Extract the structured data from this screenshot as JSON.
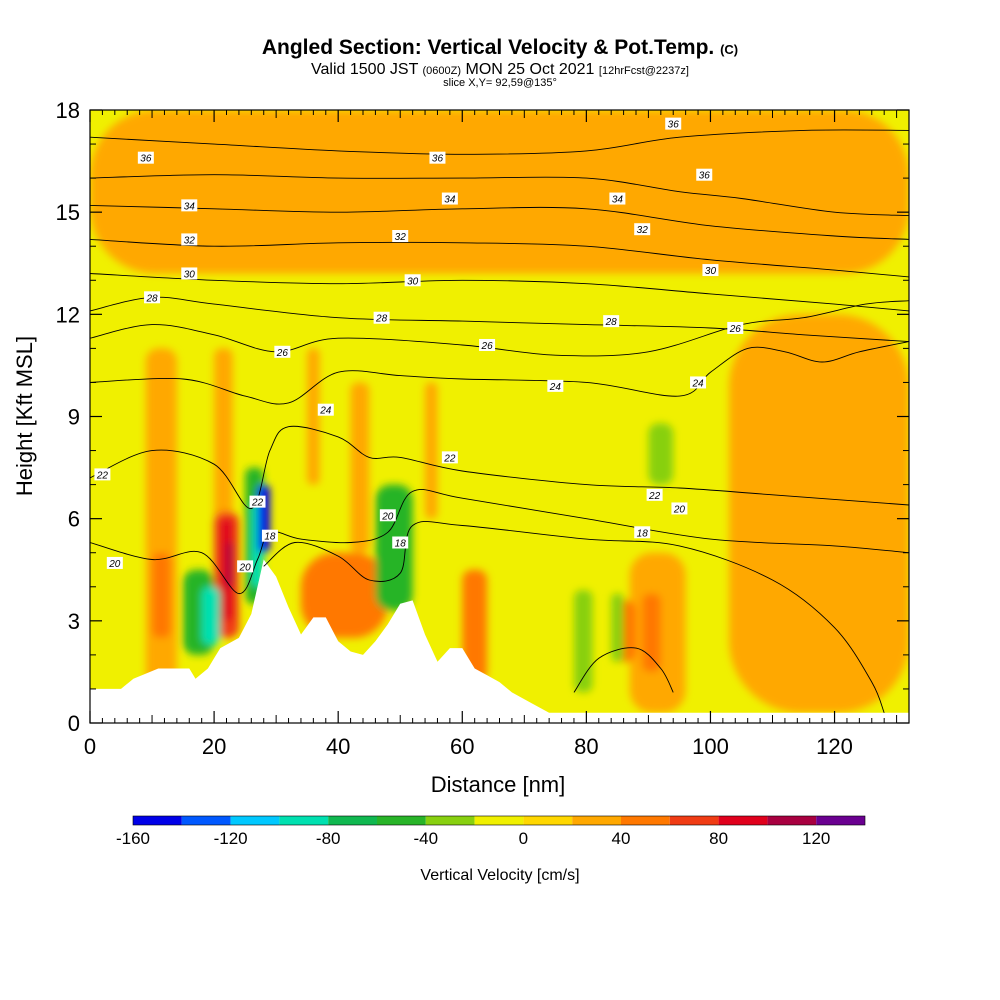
{
  "header": {
    "title": "Angled Section: Vertical Velocity & Pot.Temp.",
    "title_unit": "(C)",
    "valid_prefix": "Valid 1500 JST",
    "valid_utc": "(0600Z)",
    "valid_date": "MON 25 Oct 2021",
    "forecast": "[12hrFcst@2237z]",
    "slice": "slice X,Y= 92,59@135°"
  },
  "chart_data": {
    "type": "heatmap",
    "xlabel": "Distance [nm]",
    "ylabel": "Height [Kft MSL]",
    "xlim": [
      0,
      132
    ],
    "ylim": [
      0,
      18
    ],
    "x_ticks": [
      0,
      20,
      40,
      60,
      80,
      100,
      120
    ],
    "y_ticks": [
      0,
      3,
      6,
      9,
      12,
      15,
      18
    ],
    "colorbar": {
      "label": "Vertical Velocity [cm/s]",
      "range": [
        -160,
        140
      ],
      "step": 20,
      "tick_values": [
        -160,
        -120,
        -80,
        -40,
        0,
        40,
        80,
        120
      ],
      "colors": [
        "#0000e8",
        "#0058ff",
        "#00c8ff",
        "#00e0b0",
        "#10b850",
        "#28b428",
        "#88d010",
        "#f0f000",
        "#ffd700",
        "#ffa800",
        "#ff7800",
        "#f03c14",
        "#e0001c",
        "#a80040",
        "#6a0090"
      ]
    },
    "terrain": [
      [
        0,
        1.0
      ],
      [
        5,
        1.0
      ],
      [
        7,
        1.3
      ],
      [
        11,
        1.6
      ],
      [
        16,
        1.6
      ],
      [
        17,
        1.3
      ],
      [
        19,
        1.6
      ],
      [
        20,
        1.9
      ],
      [
        21,
        2.2
      ],
      [
        24,
        2.5
      ],
      [
        26,
        3.2
      ],
      [
        28,
        4.8
      ],
      [
        30,
        4.3
      ],
      [
        32,
        3.4
      ],
      [
        34,
        2.6
      ],
      [
        36,
        3.1
      ],
      [
        38,
        3.1
      ],
      [
        40,
        2.4
      ],
      [
        42,
        2.1
      ],
      [
        44,
        2.0
      ],
      [
        46,
        2.4
      ],
      [
        48,
        2.9
      ],
      [
        50,
        3.5
      ],
      [
        52,
        3.6
      ],
      [
        54,
        2.6
      ],
      [
        56,
        1.8
      ],
      [
        58,
        2.2
      ],
      [
        60,
        2.2
      ],
      [
        62,
        1.6
      ],
      [
        64,
        1.4
      ],
      [
        66,
        1.2
      ],
      [
        68,
        0.9
      ],
      [
        71,
        0.6
      ],
      [
        74,
        0.3
      ],
      [
        132,
        0.3
      ]
    ],
    "theta_contours": [
      {
        "level": 36,
        "points": [
          [
            0,
            17.2
          ],
          [
            20,
            17.0
          ],
          [
            40,
            16.8
          ],
          [
            60,
            16.7
          ],
          [
            80,
            16.8
          ],
          [
            95,
            17.2
          ],
          [
            115,
            17.4
          ],
          [
            132,
            17.4
          ]
        ]
      },
      {
        "level": 36,
        "points": [
          [
            0,
            16.0
          ],
          [
            20,
            16.1
          ],
          [
            40,
            16.0
          ],
          [
            60,
            16.0
          ],
          [
            80,
            16.0
          ],
          [
            95,
            15.6
          ],
          [
            105,
            15.4
          ],
          [
            120,
            15.0
          ],
          [
            132,
            14.9
          ]
        ]
      },
      {
        "level": 34,
        "points": [
          [
            0,
            15.2
          ],
          [
            20,
            15.1
          ],
          [
            40,
            15.0
          ],
          [
            60,
            15.1
          ],
          [
            80,
            15.1
          ],
          [
            100,
            14.6
          ],
          [
            120,
            14.3
          ],
          [
            132,
            14.2
          ]
        ]
      },
      {
        "level": 32,
        "points": [
          [
            0,
            14.2
          ],
          [
            20,
            14.0
          ],
          [
            40,
            14.1
          ],
          [
            60,
            14.1
          ],
          [
            80,
            14.0
          ],
          [
            100,
            13.6
          ],
          [
            120,
            13.3
          ],
          [
            132,
            13.1
          ]
        ]
      },
      {
        "level": 30,
        "points": [
          [
            0,
            13.2
          ],
          [
            20,
            13.0
          ],
          [
            40,
            12.9
          ],
          [
            60,
            13.0
          ],
          [
            80,
            12.9
          ],
          [
            100,
            12.6
          ],
          [
            120,
            12.3
          ],
          [
            132,
            12.1
          ]
        ]
      },
      {
        "level": 28,
        "points": [
          [
            0,
            12.1
          ],
          [
            10,
            12.5
          ],
          [
            20,
            12.3
          ],
          [
            40,
            11.9
          ],
          [
            60,
            11.8
          ],
          [
            80,
            11.7
          ],
          [
            100,
            11.6
          ],
          [
            115,
            11.4
          ],
          [
            132,
            11.2
          ]
        ]
      },
      {
        "level": 26,
        "points": [
          [
            0,
            11.3
          ],
          [
            10,
            11.7
          ],
          [
            20,
            11.4
          ],
          [
            30,
            10.9
          ],
          [
            40,
            11.3
          ],
          [
            60,
            11.1
          ],
          [
            75,
            10.8
          ],
          [
            90,
            10.9
          ],
          [
            105,
            11.7
          ],
          [
            115,
            11.9
          ],
          [
            125,
            12.3
          ],
          [
            132,
            12.4
          ]
        ]
      },
      {
        "level": 24,
        "points": [
          [
            0,
            10.0
          ],
          [
            15,
            10.1
          ],
          [
            25,
            9.6
          ],
          [
            32,
            9.4
          ],
          [
            40,
            10.3
          ],
          [
            50,
            10.2
          ],
          [
            60,
            10.1
          ],
          [
            80,
            10.0
          ],
          [
            95,
            9.6
          ],
          [
            100,
            10.3
          ],
          [
            106,
            11.0
          ],
          [
            112,
            10.9
          ],
          [
            118,
            10.6
          ],
          [
            124,
            10.9
          ],
          [
            132,
            11.2
          ]
        ]
      },
      {
        "level": 22,
        "points": [
          [
            0,
            7.2
          ],
          [
            10,
            8.0
          ],
          [
            20,
            7.6
          ],
          [
            26,
            6.3
          ],
          [
            29,
            8.0
          ],
          [
            32,
            8.7
          ],
          [
            40,
            8.4
          ],
          [
            45,
            7.8
          ],
          [
            50,
            7.8
          ],
          [
            60,
            7.4
          ],
          [
            80,
            7.0
          ],
          [
            95,
            6.9
          ],
          [
            110,
            6.7
          ],
          [
            132,
            6.4
          ]
        ]
      },
      {
        "level": 20,
        "points": [
          [
            0,
            5.3
          ],
          [
            10,
            4.8
          ],
          [
            18,
            5.0
          ],
          [
            24,
            3.8
          ],
          [
            27,
            4.8
          ],
          [
            29,
            5.6
          ],
          [
            34,
            5.4
          ],
          [
            42,
            5.3
          ],
          [
            48,
            5.6
          ],
          [
            52,
            6.8
          ],
          [
            60,
            6.6
          ],
          [
            80,
            6.0
          ],
          [
            100,
            5.4
          ],
          [
            120,
            5.2
          ],
          [
            132,
            5.0
          ]
        ]
      },
      {
        "level": 18,
        "points": [
          [
            28,
            4.6
          ],
          [
            33,
            5.3
          ],
          [
            40,
            4.9
          ],
          [
            45,
            4.2
          ],
          [
            50,
            4.4
          ],
          [
            52,
            5.8
          ],
          [
            60,
            5.8
          ],
          [
            80,
            5.4
          ],
          [
            95,
            5.2
          ],
          [
            110,
            4.2
          ],
          [
            120,
            2.8
          ],
          [
            126,
            1.2
          ],
          [
            128,
            0.3
          ]
        ]
      },
      {
        "level": 18,
        "points": [
          [
            78,
            0.9
          ],
          [
            82,
            1.9
          ],
          [
            88,
            2.2
          ],
          [
            92,
            1.6
          ],
          [
            94,
            0.9
          ]
        ]
      }
    ],
    "contour_labels": [
      {
        "text": "36",
        "x": 9,
        "y": 16.6
      },
      {
        "text": "36",
        "x": 56,
        "y": 16.6
      },
      {
        "text": "36",
        "x": 94,
        "y": 17.6
      },
      {
        "text": "36",
        "x": 99,
        "y": 16.1
      },
      {
        "text": "34",
        "x": 16,
        "y": 15.2
      },
      {
        "text": "34",
        "x": 58,
        "y": 15.4
      },
      {
        "text": "34",
        "x": 85,
        "y": 15.4
      },
      {
        "text": "32",
        "x": 16,
        "y": 14.2
      },
      {
        "text": "32",
        "x": 50,
        "y": 14.3
      },
      {
        "text": "32",
        "x": 89,
        "y": 14.5
      },
      {
        "text": "30",
        "x": 16,
        "y": 13.2
      },
      {
        "text": "30",
        "x": 52,
        "y": 13.0
      },
      {
        "text": "30",
        "x": 100,
        "y": 13.3
      },
      {
        "text": "28",
        "x": 10,
        "y": 12.5
      },
      {
        "text": "28",
        "x": 47,
        "y": 11.9
      },
      {
        "text": "28",
        "x": 84,
        "y": 11.8
      },
      {
        "text": "26",
        "x": 31,
        "y": 10.9
      },
      {
        "text": "26",
        "x": 64,
        "y": 11.1
      },
      {
        "text": "26",
        "x": 104,
        "y": 11.6
      },
      {
        "text": "24",
        "x": 38,
        "y": 9.2
      },
      {
        "text": "24",
        "x": 75,
        "y": 9.9
      },
      {
        "text": "24",
        "x": 98,
        "y": 10.0
      },
      {
        "text": "22",
        "x": 2,
        "y": 7.3
      },
      {
        "text": "22",
        "x": 27,
        "y": 6.5
      },
      {
        "text": "22",
        "x": 58,
        "y": 7.8
      },
      {
        "text": "22",
        "x": 91,
        "y": 6.7
      },
      {
        "text": "20",
        "x": 4,
        "y": 4.7
      },
      {
        "text": "20",
        "x": 25,
        "y": 4.6
      },
      {
        "text": "20",
        "x": 48,
        "y": 6.1
      },
      {
        "text": "20",
        "x": 95,
        "y": 6.3
      },
      {
        "text": "18",
        "x": 29,
        "y": 5.5
      },
      {
        "text": "18",
        "x": 50,
        "y": 5.3
      },
      {
        "text": "18",
        "x": 89,
        "y": 5.6
      }
    ],
    "velocity_features": [
      {
        "kind": "band",
        "value": 30,
        "x": [
          9,
          14
        ],
        "y": [
          0.5,
          11.0
        ]
      },
      {
        "kind": "band",
        "value": 30,
        "x": [
          20,
          23
        ],
        "y": [
          3.5,
          11.0
        ]
      },
      {
        "kind": "band",
        "value": 30,
        "x": [
          35,
          37
        ],
        "y": [
          7.0,
          11.0
        ]
      },
      {
        "kind": "band",
        "value": 30,
        "x": [
          42,
          45
        ],
        "y": [
          5.0,
          10.0
        ]
      },
      {
        "kind": "band",
        "value": 30,
        "x": [
          54,
          56
        ],
        "y": [
          6.0,
          10.0
        ]
      },
      {
        "kind": "band",
        "value": 30,
        "x": [
          103,
          132
        ],
        "y": [
          0.3,
          12.0
        ]
      },
      {
        "kind": "band",
        "value": 30,
        "x": [
          0,
          132
        ],
        "y": [
          13.2,
          18.0
        ]
      },
      {
        "kind": "band",
        "value": 30,
        "x": [
          87,
          96
        ],
        "y": [
          0.3,
          5.0
        ]
      },
      {
        "kind": "band",
        "value": 50,
        "x": [
          34,
          48
        ],
        "y": [
          2.5,
          5.0
        ]
      },
      {
        "kind": "band",
        "value": 50,
        "x": [
          10,
          13
        ],
        "y": [
          2.5,
          5.0
        ]
      },
      {
        "kind": "band",
        "value": 50,
        "x": [
          60,
          64
        ],
        "y": [
          1.2,
          4.5
        ]
      },
      {
        "kind": "band",
        "value": 50,
        "x": [
          84,
          88
        ],
        "y": [
          1.8,
          3.6
        ]
      },
      {
        "kind": "band",
        "value": 50,
        "x": [
          89,
          92
        ],
        "y": [
          1.5,
          3.8
        ]
      },
      {
        "kind": "band",
        "value": 70,
        "x": [
          20,
          24
        ],
        "y": [
          2.5,
          6.2
        ]
      },
      {
        "kind": "band",
        "value": 90,
        "x": [
          21,
          23
        ],
        "y": [
          3.0,
          6.0
        ]
      },
      {
        "kind": "band",
        "value": 110,
        "x": [
          22,
          23
        ],
        "y": [
          4.0,
          5.3
        ]
      },
      {
        "kind": "band",
        "value": -50,
        "x": [
          15,
          20
        ],
        "y": [
          2.0,
          4.5
        ]
      },
      {
        "kind": "band",
        "value": -90,
        "x": [
          18,
          21
        ],
        "y": [
          2.3,
          4.0
        ]
      },
      {
        "kind": "band",
        "value": -50,
        "x": [
          25,
          28
        ],
        "y": [
          3.5,
          7.5
        ]
      },
      {
        "kind": "band",
        "value": -90,
        "x": [
          26,
          28
        ],
        "y": [
          4.0,
          6.5
        ]
      },
      {
        "kind": "band",
        "value": -150,
        "x": [
          27,
          29
        ],
        "y": [
          5.0,
          7.0
        ]
      },
      {
        "kind": "band",
        "value": -50,
        "x": [
          46,
          52
        ],
        "y": [
          3.3,
          7.0
        ]
      },
      {
        "kind": "band",
        "value": -30,
        "x": [
          78,
          81
        ],
        "y": [
          0.9,
          3.9
        ]
      },
      {
        "kind": "band",
        "value": -30,
        "x": [
          84,
          86
        ],
        "y": [
          1.8,
          3.8
        ]
      },
      {
        "kind": "band",
        "value": -30,
        "x": [
          90,
          94
        ],
        "y": [
          7.0,
          8.8
        ]
      }
    ]
  }
}
